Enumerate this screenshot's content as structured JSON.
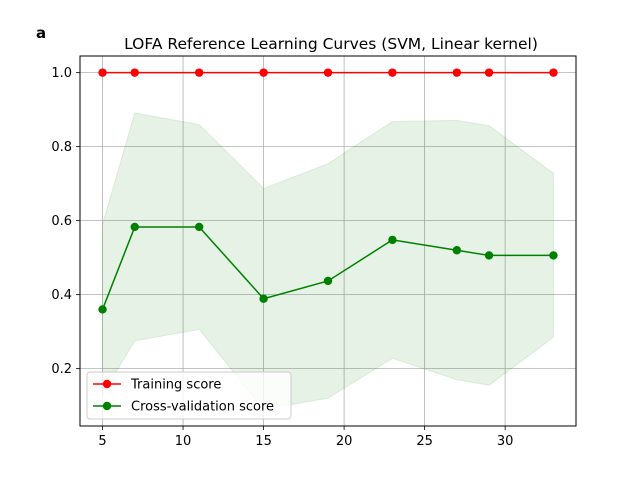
{
  "panel_label": "a",
  "chart_data": {
    "type": "line",
    "title": "LOFA Reference Learning Curves (SVM, Linear kernel)",
    "xlabel": "",
    "ylabel": "",
    "x": [
      5,
      7,
      11,
      15,
      19,
      23,
      27,
      29,
      33
    ],
    "xlim": [
      3.6,
      34.4
    ],
    "ylim": [
      0.045,
      1.045
    ],
    "xticks": [
      5,
      10,
      15,
      20,
      25,
      30
    ],
    "yticks": [
      0.2,
      0.4,
      0.6,
      0.8,
      1.0
    ],
    "xtick_labels": [
      "5",
      "10",
      "15",
      "20",
      "25",
      "30"
    ],
    "ytick_labels": [
      "0.2",
      "0.4",
      "0.6",
      "0.8",
      "1.0"
    ],
    "grid": true,
    "legend_position": "lower-left",
    "series": [
      {
        "name": "Training score",
        "color": "#ff0000",
        "values": [
          1.0,
          1.0,
          1.0,
          1.0,
          1.0,
          1.0,
          1.0,
          1.0,
          1.0
        ],
        "band_lower": [
          1.0,
          1.0,
          1.0,
          1.0,
          1.0,
          1.0,
          1.0,
          1.0,
          1.0
        ],
        "band_upper": [
          1.0,
          1.0,
          1.0,
          1.0,
          1.0,
          1.0,
          1.0,
          1.0,
          1.0
        ]
      },
      {
        "name": "Cross-validation score",
        "color": "#008000",
        "band_color": "#008000",
        "values": [
          0.36,
          0.583,
          0.583,
          0.389,
          0.437,
          0.548,
          0.52,
          0.506,
          0.506
        ],
        "band_lower": [
          0.13,
          0.275,
          0.306,
          0.09,
          0.12,
          0.228,
          0.17,
          0.155,
          0.285
        ],
        "band_upper": [
          0.59,
          0.891,
          0.86,
          0.687,
          0.754,
          0.868,
          0.871,
          0.857,
          0.728
        ]
      }
    ]
  }
}
